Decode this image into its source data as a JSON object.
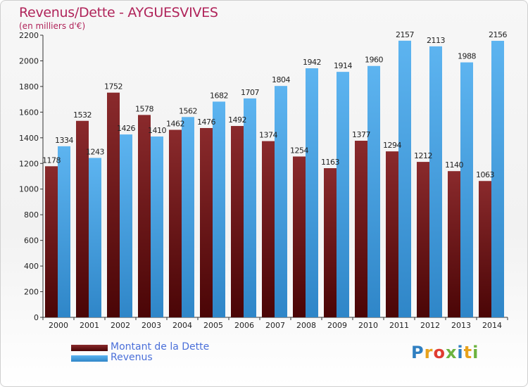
{
  "title": "Revenus/Dette - AYGUESVIVES",
  "subtitle": "(en milliers d'€)",
  "logo": {
    "text": "Proxiti",
    "letter_colors": [
      "#2f7fc1",
      "#e8a21c",
      "#e03c31",
      "#6cb33f",
      "#2f7fc1",
      "#e8a21c",
      "#6cb33f"
    ]
  },
  "legend": [
    {
      "label": "Montant de la Dette",
      "color": "#6e1214"
    },
    {
      "label": "Revenus",
      "color": "#4aa3e6"
    }
  ],
  "chart_data": {
    "type": "bar",
    "categories": [
      "2000",
      "2001",
      "2002",
      "2003",
      "2004",
      "2005",
      "2006",
      "2007",
      "2008",
      "2009",
      "2010",
      "2011",
      "2012",
      "2013",
      "2014"
    ],
    "series": [
      {
        "name": "Montant de la Dette",
        "color": "#6e1214",
        "values": [
          1178,
          1532,
          1752,
          1578,
          1462,
          1476,
          1492,
          1374,
          1254,
          1163,
          1377,
          1294,
          1212,
          1140,
          1063
        ],
        "labels": [
          "1178",
          "1532",
          "1752",
          "1578",
          "1462",
          "1476",
          "1492",
          "1374",
          "1254",
          "1163",
          "1377",
          "1294",
          "1212",
          "1140",
          "1063"
        ]
      },
      {
        "name": "Revenus",
        "color": "#4aa3e6",
        "values": [
          1334,
          1243,
          1426,
          1410,
          1562,
          1682,
          1707,
          1804,
          1942,
          1914,
          1960,
          2157,
          2113,
          1988,
          2156
        ],
        "labels": [
          "1334",
          "1243",
          "1426",
          "1410",
          "1562",
          "1682",
          "1707",
          "1804",
          "1942",
          "1914",
          "1960",
          "2157",
          "2113",
          "1988",
          "2156"
        ]
      }
    ],
    "y_ticks": [
      0,
      200,
      400,
      600,
      800,
      1000,
      1200,
      1400,
      1600,
      1800,
      2000,
      2200
    ],
    "ylim": [
      0,
      2200
    ],
    "grid": false
  }
}
